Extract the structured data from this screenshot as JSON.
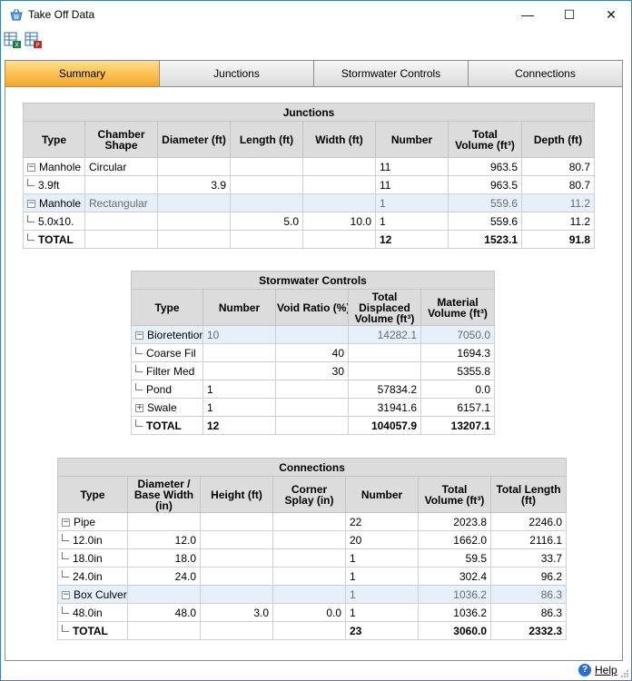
{
  "window": {
    "title": "Take Off Data",
    "minimize": "—",
    "maximize": "☐",
    "close": "✕"
  },
  "tabs": [
    {
      "label": "Summary",
      "active": true
    },
    {
      "label": "Junctions",
      "active": false
    },
    {
      "label": "Stormwater Controls",
      "active": false
    },
    {
      "label": "Connections",
      "active": false
    }
  ],
  "junctions": {
    "caption": "Junctions",
    "headers": [
      "Type",
      "Chamber Shape",
      "Diameter (ft)",
      "Length (ft)",
      "Width (ft)",
      "Number",
      "Total Volume (ft³)",
      "Depth (ft)"
    ],
    "rows": [
      {
        "type": "Manhole",
        "shape": "Circular",
        "diameter": "",
        "length": "",
        "width": "",
        "number": "11",
        "volume": "963.5",
        "depth": "80.7"
      },
      {
        "type": "3.9ft",
        "shape": "",
        "diameter": "3.9",
        "length": "",
        "width": "",
        "number": "11",
        "volume": "963.5",
        "depth": "80.7"
      },
      {
        "type": "Manhole",
        "shape": "Rectangular",
        "diameter": "",
        "length": "",
        "width": "",
        "number": "1",
        "volume": "559.6",
        "depth": "11.2"
      },
      {
        "type": "5.0x10.",
        "shape": "",
        "diameter": "",
        "length": "5.0",
        "width": "10.0",
        "number": "1",
        "volume": "559.6",
        "depth": "11.2"
      },
      {
        "type": "TOTAL",
        "shape": "",
        "diameter": "",
        "length": "",
        "width": "",
        "number": "12",
        "volume": "1523.1",
        "depth": "91.8"
      }
    ]
  },
  "stormwater": {
    "caption": "Stormwater Controls",
    "headers": [
      "Type",
      "Number",
      "Void Ratio (%)",
      "Total Displaced Volume (ft³)",
      "Material Volume (ft³)"
    ],
    "rows": [
      {
        "type": "Bioretention",
        "number": "10",
        "void": "",
        "displaced": "14282.1",
        "material": "7050.0"
      },
      {
        "type": "Coarse Fil",
        "number": "",
        "void": "40",
        "displaced": "",
        "material": "1694.3"
      },
      {
        "type": "Filter Med",
        "number": "",
        "void": "30",
        "displaced": "",
        "material": "5355.8"
      },
      {
        "type": "Pond",
        "number": "1",
        "void": "",
        "displaced": "57834.2",
        "material": "0.0"
      },
      {
        "type": "Swale",
        "number": "1",
        "void": "",
        "displaced": "31941.6",
        "material": "6157.1"
      },
      {
        "type": "TOTAL",
        "number": "12",
        "void": "",
        "displaced": "104057.9",
        "material": "13207.1"
      }
    ]
  },
  "connections": {
    "caption": "Connections",
    "headers": [
      "Type",
      "Diameter / Base Width (in)",
      "Height (ft)",
      "Corner Splay (in)",
      "Number",
      "Total Volume (ft³)",
      "Total Length (ft)"
    ],
    "rows": [
      {
        "type": "Pipe",
        "diameter": "",
        "height": "",
        "splay": "",
        "number": "22",
        "volume": "2023.8",
        "length": "2246.0"
      },
      {
        "type": "12.0in",
        "diameter": "12.0",
        "height": "",
        "splay": "",
        "number": "20",
        "volume": "1662.0",
        "length": "2116.1"
      },
      {
        "type": "18.0in",
        "diameter": "18.0",
        "height": "",
        "splay": "",
        "number": "1",
        "volume": "59.5",
        "length": "33.7"
      },
      {
        "type": "24.0in",
        "diameter": "24.0",
        "height": "",
        "splay": "",
        "number": "1",
        "volume": "302.4",
        "length": "96.2"
      },
      {
        "type": "Box Culvert",
        "diameter": "",
        "height": "",
        "splay": "",
        "number": "1",
        "volume": "1036.2",
        "length": "86.3"
      },
      {
        "type": "48.0in",
        "diameter": "48.0",
        "height": "3.0",
        "splay": "0.0",
        "number": "1",
        "volume": "1036.2",
        "length": "86.3"
      },
      {
        "type": "TOTAL",
        "diameter": "",
        "height": "",
        "splay": "",
        "number": "23",
        "volume": "3060.0",
        "length": "2332.3"
      }
    ]
  },
  "footer": {
    "help_label": "Help"
  },
  "icons": {
    "app": "basket-icon",
    "toolbar1": "export-excel-icon",
    "toolbar2": "export-pdf-icon"
  }
}
